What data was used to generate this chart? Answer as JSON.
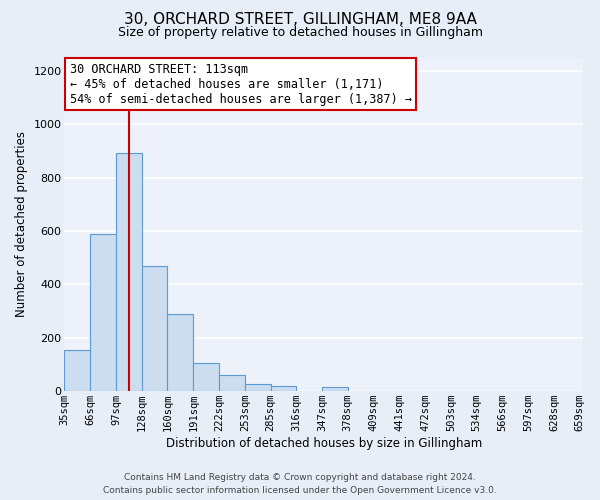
{
  "title": "30, ORCHARD STREET, GILLINGHAM, ME8 9AA",
  "subtitle": "Size of property relative to detached houses in Gillingham",
  "xlabel": "Distribution of detached houses by size in Gillingham",
  "ylabel": "Number of detached properties",
  "bin_labels": [
    "35sqm",
    "66sqm",
    "97sqm",
    "128sqm",
    "160sqm",
    "191sqm",
    "222sqm",
    "253sqm",
    "285sqm",
    "316sqm",
    "347sqm",
    "378sqm",
    "409sqm",
    "441sqm",
    "472sqm",
    "503sqm",
    "534sqm",
    "566sqm",
    "597sqm",
    "628sqm",
    "659sqm"
  ],
  "bar_values": [
    155,
    590,
    893,
    468,
    290,
    105,
    62,
    28,
    18,
    0,
    15,
    0,
    0,
    0,
    0,
    0,
    0,
    0,
    0,
    0,
    0
  ],
  "bar_color": "#ccddf0",
  "bar_edge_color": "#5b9bd5",
  "property_line_x": 113,
  "property_line_color": "#cc0000",
  "annotation_line1": "30 ORCHARD STREET: 113sqm",
  "annotation_line2": "← 45% of detached houses are smaller (1,171)",
  "annotation_line3": "54% of semi-detached houses are larger (1,387) →",
  "annotation_box_color": "#ffffff",
  "annotation_box_edge_color": "#cc0000",
  "ylim": [
    0,
    1250
  ],
  "xlim_min": 35,
  "xlim_max": 659,
  "bin_width": 31,
  "footer_line1": "Contains HM Land Registry data © Crown copyright and database right 2024.",
  "footer_line2": "Contains public sector information licensed under the Open Government Licence v3.0.",
  "bg_color": "#e8eef8",
  "plot_bg_color": "#edf2fa",
  "grid_color": "#ffffff",
  "title_fontsize": 11,
  "subtitle_fontsize": 9,
  "axis_label_fontsize": 8.5,
  "tick_fontsize": 7.5,
  "footer_fontsize": 6.5,
  "annotation_fontsize": 8.5
}
